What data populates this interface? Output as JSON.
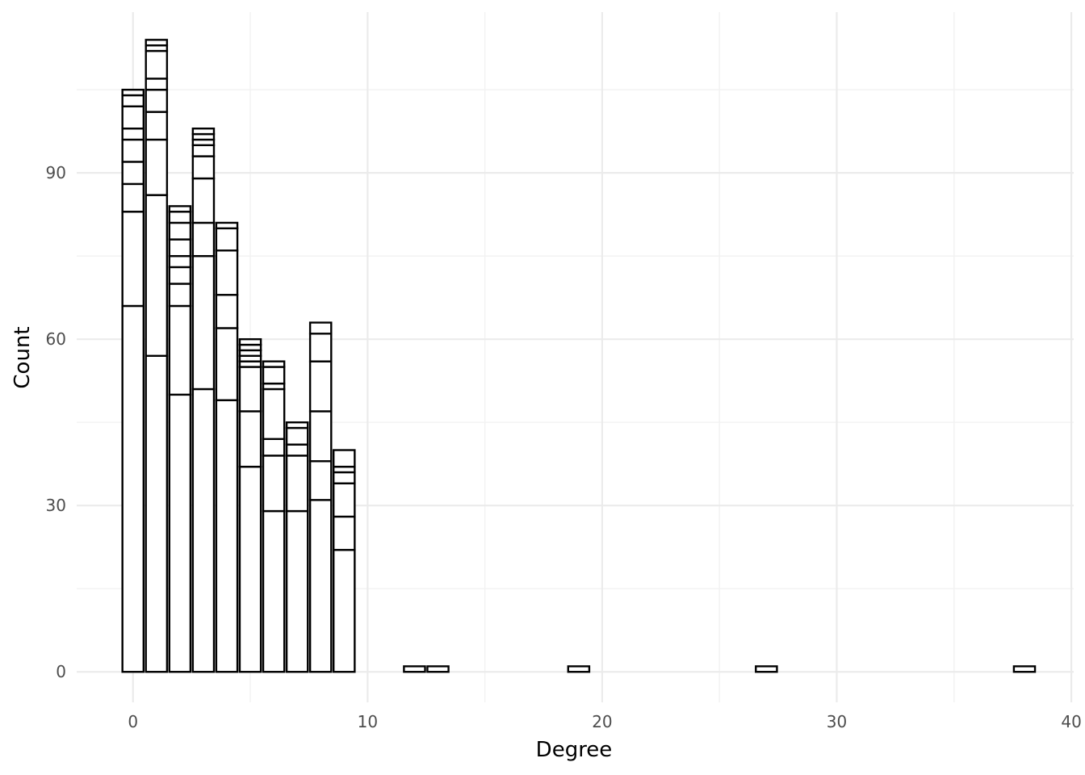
{
  "chart_data": {
    "type": "bar",
    "stacked": true,
    "xlabel": "Degree",
    "ylabel": "Count",
    "xlim": [
      -2.4,
      40.1
    ],
    "ylim": [
      -5.5,
      119
    ],
    "x_ticks": [
      0,
      10,
      20,
      30,
      40
    ],
    "y_ticks": [
      0,
      30,
      60,
      90
    ],
    "grid": true,
    "bin_width": 0.9,
    "bars": [
      {
        "x": 0,
        "stack": [
          66,
          83,
          88,
          92,
          96,
          98,
          102,
          104,
          105
        ]
      },
      {
        "x": 1,
        "stack": [
          57,
          86,
          96,
          101,
          105,
          107,
          112,
          113,
          114
        ]
      },
      {
        "x": 2,
        "stack": [
          50,
          66,
          70,
          73,
          75,
          78,
          81,
          83,
          84
        ]
      },
      {
        "x": 3,
        "stack": [
          51,
          75,
          81,
          89,
          93,
          95,
          96,
          97,
          98
        ]
      },
      {
        "x": 4,
        "stack": [
          49,
          62,
          68,
          76,
          80,
          81
        ]
      },
      {
        "x": 5,
        "stack": [
          37,
          47,
          55,
          56,
          57,
          58,
          59,
          60
        ]
      },
      {
        "x": 6,
        "stack": [
          29,
          39,
          42,
          51,
          52,
          55,
          56
        ]
      },
      {
        "x": 7,
        "stack": [
          29,
          39,
          41,
          44,
          45
        ]
      },
      {
        "x": 8,
        "stack": [
          31,
          38,
          47,
          56,
          61,
          63
        ]
      },
      {
        "x": 9,
        "stack": [
          22,
          28,
          34,
          36,
          37,
          40
        ]
      },
      {
        "x": 12,
        "stack": [
          1
        ]
      },
      {
        "x": 13,
        "stack": [
          1
        ]
      },
      {
        "x": 19,
        "stack": [
          1
        ]
      },
      {
        "x": 27,
        "stack": [
          1
        ]
      },
      {
        "x": 38,
        "stack": [
          1
        ]
      }
    ]
  }
}
